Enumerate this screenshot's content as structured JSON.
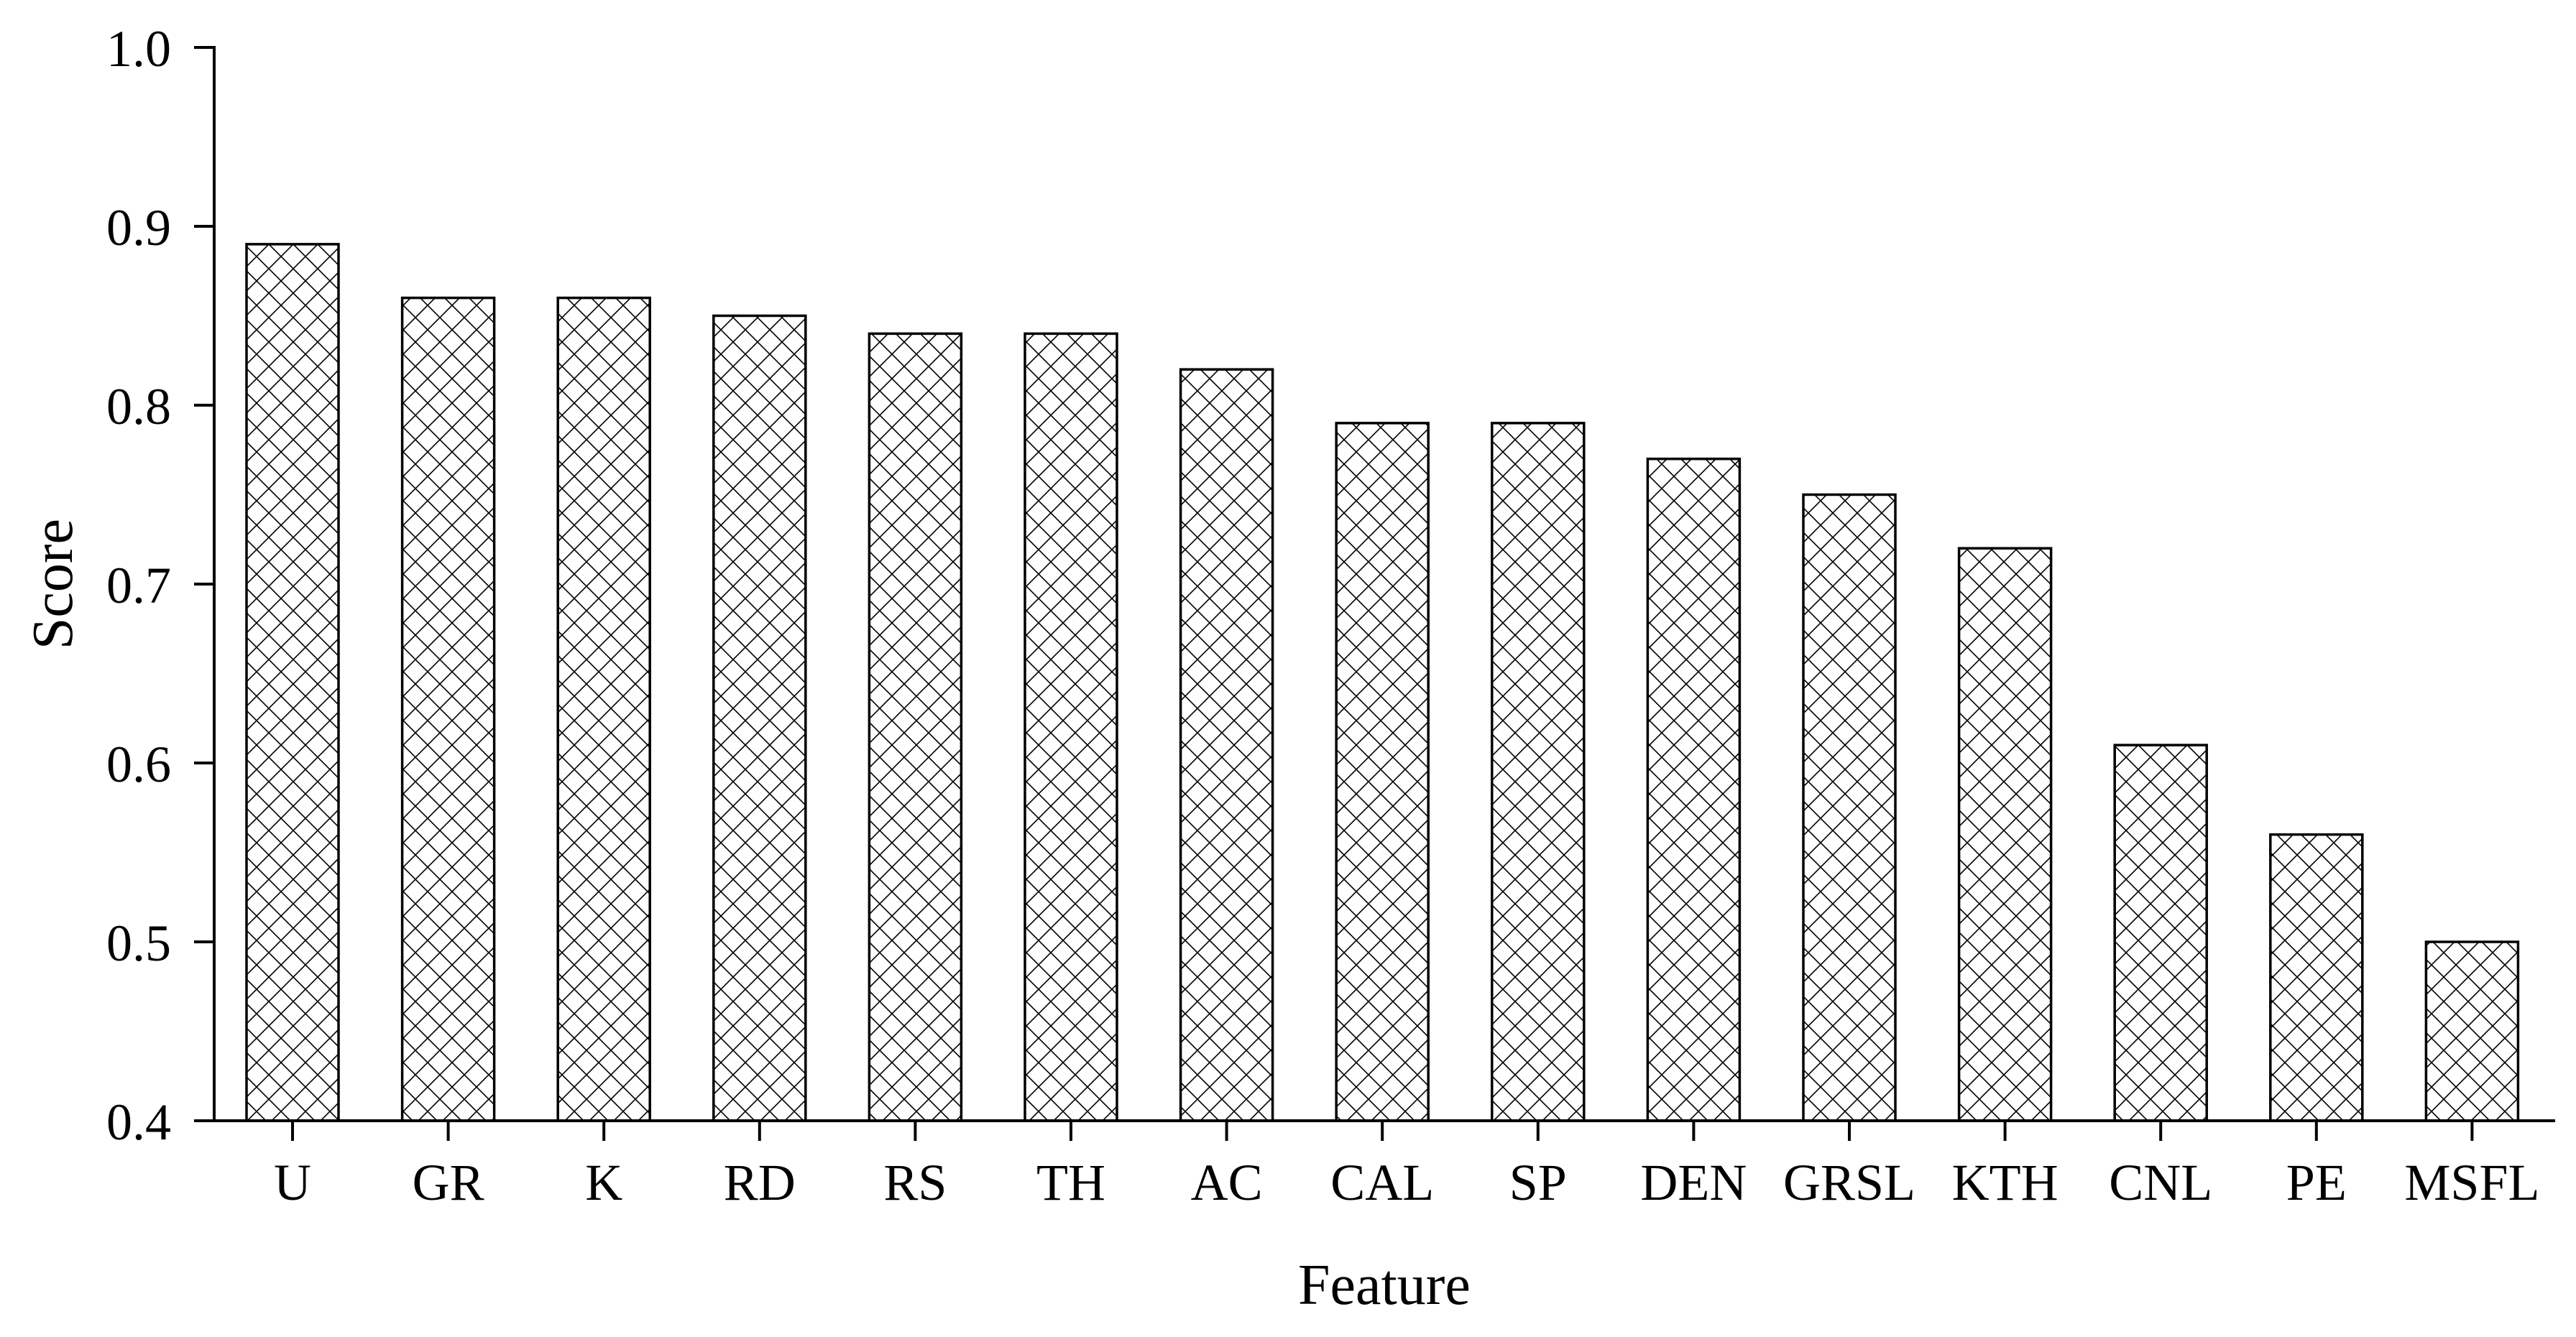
{
  "chart_data": {
    "type": "bar",
    "xlabel": "Feature",
    "ylabel": "Score",
    "ylim": [
      0.4,
      1.0
    ],
    "yticks": [
      0.4,
      0.5,
      0.6,
      0.7,
      0.8,
      0.9,
      1.0
    ],
    "ytick_labels": [
      "0.4",
      "0.5",
      "0.6",
      "0.7",
      "0.8",
      "0.9",
      "1.0"
    ],
    "categories": [
      "U",
      "GR",
      "K",
      "RD",
      "RS",
      "TH",
      "AC",
      "CAL",
      "SP",
      "DEN",
      "GRSL",
      "KTH",
      "CNL",
      "PE",
      "MSFL"
    ],
    "values": [
      0.89,
      0.86,
      0.86,
      0.85,
      0.84,
      0.84,
      0.82,
      0.79,
      0.79,
      0.77,
      0.75,
      0.72,
      0.61,
      0.56,
      0.5
    ],
    "bar_fill": "cross-hatch",
    "bar_stroke_color": "#000000",
    "grid": false,
    "legend": "none"
  }
}
